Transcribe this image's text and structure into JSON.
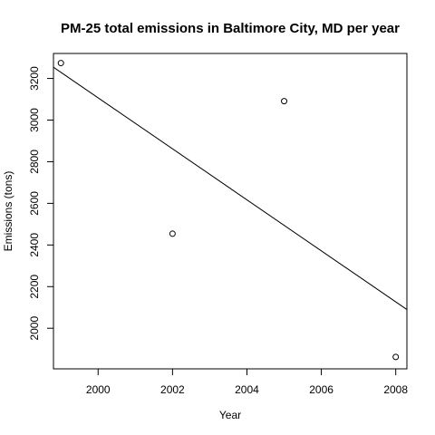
{
  "chart_data": {
    "type": "scatter",
    "title": "PM-25 total emissions in Baltimore City, MD per year",
    "xlabel": "Year",
    "ylabel": "Emissions (tons)",
    "x": [
      1999,
      2002,
      2005,
      2008
    ],
    "y": [
      3274,
      2454,
      3091,
      1862
    ],
    "xlim": [
      1998.8,
      2008.3
    ],
    "ylim": [
      1805,
      3320
    ],
    "x_ticks": [
      2000,
      2002,
      2004,
      2006,
      2008
    ],
    "x_tick_labels": [
      "2000",
      "2002",
      "2004",
      "2006",
      "2008"
    ],
    "y_ticks": [
      2000,
      2200,
      2400,
      2600,
      2800,
      3000,
      3200
    ],
    "y_tick_labels": [
      "2000",
      "2200",
      "2400",
      "2600",
      "2800",
      "3000",
      "3200"
    ],
    "trend_line": {
      "x": [
        1998.8,
        2008.3
      ],
      "y": [
        3254,
        2090
      ]
    },
    "grid": false,
    "legend": "none"
  }
}
